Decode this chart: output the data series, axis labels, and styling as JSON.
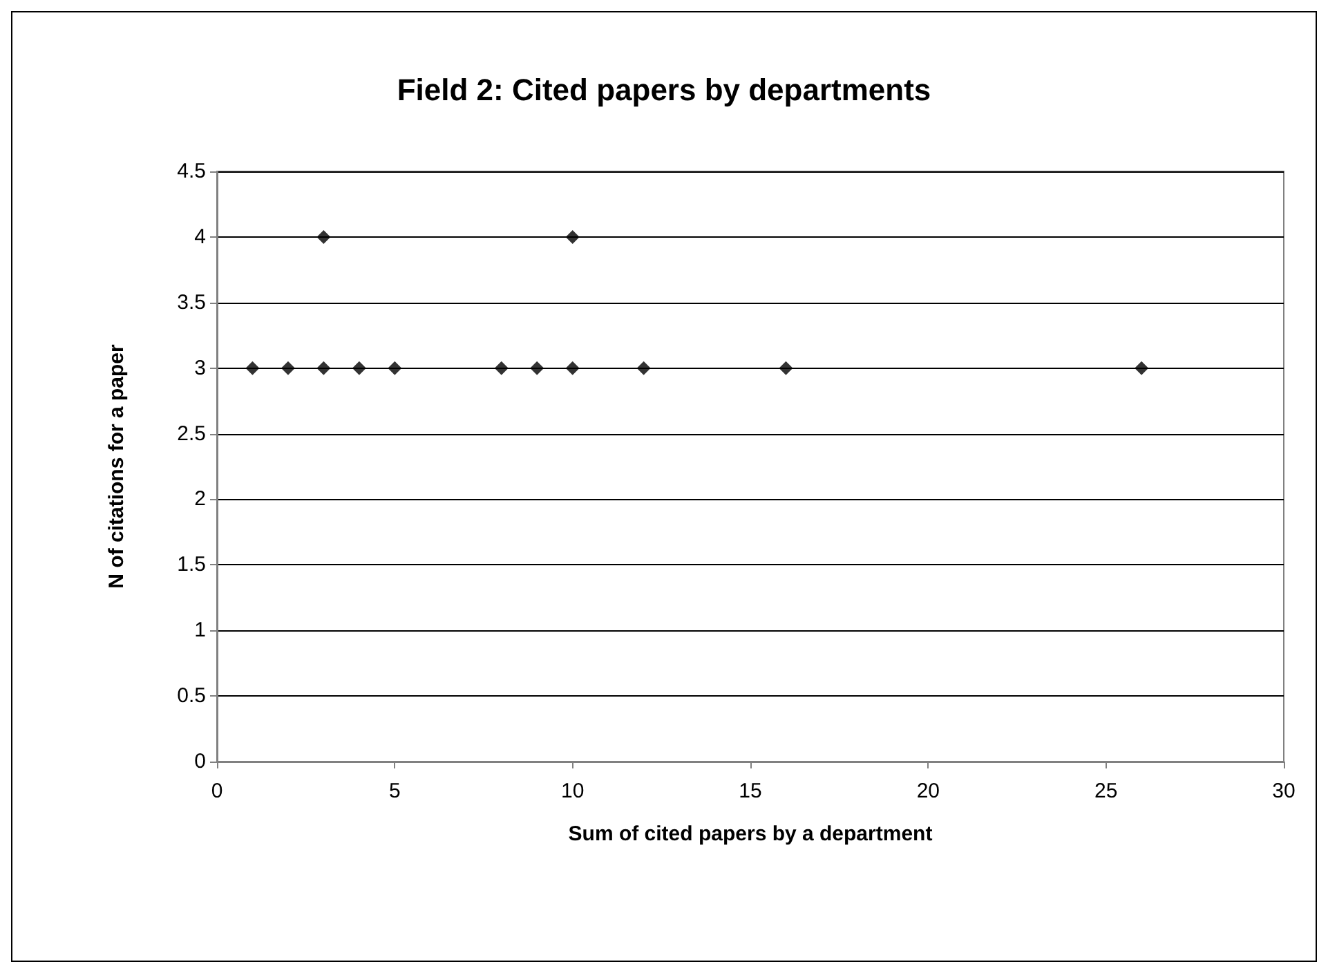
{
  "chart_data": {
    "type": "scatter",
    "title": "Field 2: Cited papers by departments",
    "xlabel": "Sum of cited papers by a department",
    "ylabel": "N of citations for a paper",
    "x": [
      1,
      2,
      3,
      3,
      4,
      5,
      8,
      9,
      10,
      10,
      12,
      16,
      26
    ],
    "values": [
      3,
      3,
      3,
      4,
      3,
      3,
      3,
      3,
      3,
      4,
      3,
      3,
      3
    ],
    "color": "#000000",
    "marker": "diamond",
    "xlim": [
      0,
      30
    ],
    "xticks": [
      0,
      5,
      10,
      15,
      20,
      25,
      30
    ],
    "ylim": [
      0,
      4.5
    ],
    "yticks": [
      0,
      0.5,
      1,
      1.5,
      2,
      2.5,
      3,
      3.5,
      4,
      4.5
    ],
    "grid": "y"
  }
}
